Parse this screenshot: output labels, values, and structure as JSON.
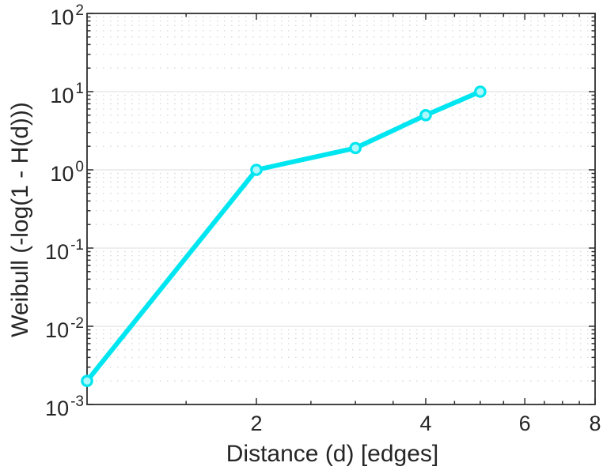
{
  "chart_data": {
    "type": "line",
    "title": "",
    "xlabel": "Distance (d) [edges]",
    "ylabel": "Weibull (-log(1 - H(d)))",
    "x_scale": "log",
    "y_scale": "log",
    "xlim": [
      1,
      8
    ],
    "ylim": [
      0.001,
      100
    ],
    "x": [
      1,
      2,
      3,
      4,
      5
    ],
    "y": [
      0.002,
      1.0,
      1.9,
      5.0,
      10.0
    ],
    "x_major_ticks": [
      2,
      4,
      6,
      8
    ],
    "x_minor_ticks": [
      1.5,
      2.5,
      3,
      3.5,
      4.5,
      5,
      5.5,
      6.5,
      7,
      7.5
    ],
    "y_tick_base": "10",
    "y_major_tick_exponents": [
      2,
      1,
      0,
      -1,
      -2,
      -3
    ],
    "grid": {
      "y_major": "solid",
      "y_minor": "dotted",
      "x_grid": "off"
    },
    "legend": "none",
    "marker": "o",
    "colors": {
      "line": "#00e6f0",
      "marker_face": "#aef7fb",
      "axis": "#2f2f2f",
      "text": "#262626",
      "grid_major": "#e8e8e8",
      "grid_minor": "#d9d9d9",
      "background": "#ffffff"
    }
  }
}
